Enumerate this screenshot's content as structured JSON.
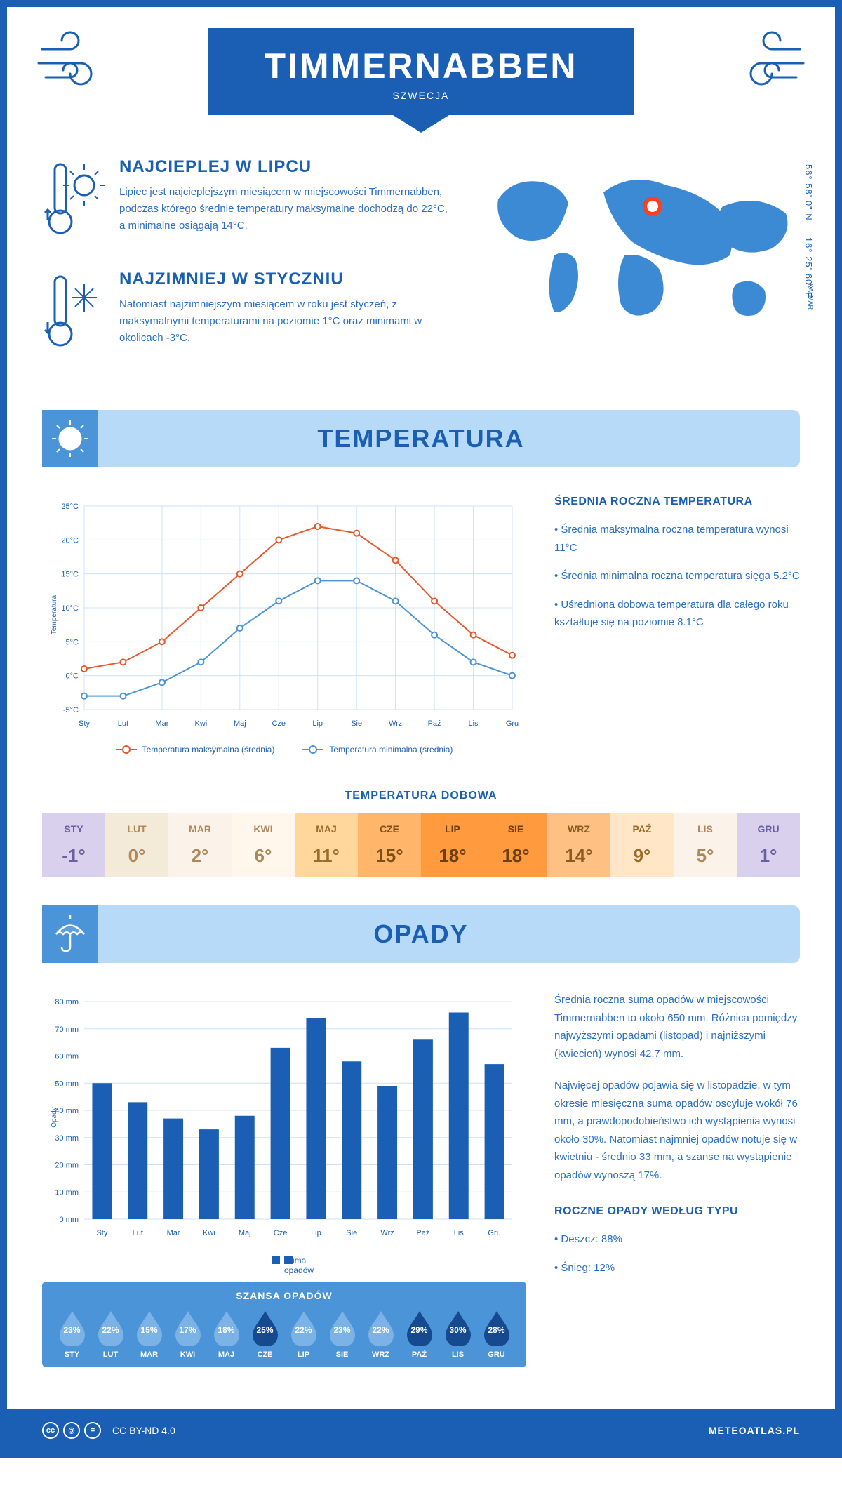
{
  "header": {
    "city": "TIMMERNABBEN",
    "country": "SZWECJA"
  },
  "info": {
    "warm": {
      "title": "NAJCIEPLEJ W LIPCU",
      "text": "Lipiec jest najcieplejszym miesiącem w miejscowości Timmernabben, podczas którego średnie temperatury maksymalne dochodzą do 22°C, a minimalne osiągają 14°C."
    },
    "cold": {
      "title": "NAJZIMNIEJ W STYCZNIU",
      "text": "Natomiast najzimniejszym miesiącem w roku jest styczeń, z maksymalnymi temperaturami na poziomie 1°C oraz minimami w okolicach -3°C."
    },
    "coords": "56° 58' 0\" N — 16° 25' 60\" E",
    "region": "KALMAR"
  },
  "temp_section": {
    "banner": "TEMPERATURA",
    "chart": {
      "type": "line",
      "months": [
        "Sty",
        "Lut",
        "Mar",
        "Kwi",
        "Maj",
        "Cze",
        "Lip",
        "Sie",
        "Wrz",
        "Paź",
        "Lis",
        "Gru"
      ],
      "max_series": {
        "label": "Temperatura maksymalna (średnia)",
        "color": "#e8562a",
        "values": [
          1,
          2,
          5,
          10,
          15,
          20,
          22,
          21,
          17,
          11,
          6,
          3
        ]
      },
      "min_series": {
        "label": "Temperatura minimalna (średnia)",
        "color": "#4b94d8",
        "values": [
          -3,
          -3,
          -1,
          2,
          7,
          11,
          14,
          14,
          11,
          6,
          2,
          0
        ]
      },
      "ylim": [
        -5,
        25
      ],
      "ytick_step": 5,
      "ylabel": "Temperatura",
      "grid_color": "#cce3f7",
      "background": "#ffffff"
    },
    "side": {
      "title": "ŚREDNIA ROCZNA TEMPERATURA",
      "items": [
        "Średnia maksymalna roczna temperatura wynosi 11°C",
        "Średnia minimalna roczna temperatura sięga 5.2°C",
        "Uśredniona dobowa temperatura dla całego roku kształtuje się na poziomie 8.1°C"
      ]
    },
    "daily": {
      "title": "TEMPERATURA DOBOWA",
      "months": [
        "STY",
        "LUT",
        "MAR",
        "KWI",
        "MAJ",
        "CZE",
        "LIP",
        "SIE",
        "WRZ",
        "PAŹ",
        "LIS",
        "GRU"
      ],
      "values": [
        "-1°",
        "0°",
        "2°",
        "6°",
        "11°",
        "15°",
        "18°",
        "18°",
        "14°",
        "9°",
        "5°",
        "1°"
      ],
      "bg_colors": [
        "#d8d0ec",
        "#f4ead8",
        "#fbf3e9",
        "#fff6ec",
        "#ffd79d",
        "#ffb66b",
        "#ff9a3f",
        "#ff9a3f",
        "#ffc183",
        "#ffe6c7",
        "#fbf3e9",
        "#d8d0ec"
      ],
      "text_colors": [
        "#6a5fa0",
        "#b0875a",
        "#b0875a",
        "#b0875a",
        "#9a6b2a",
        "#7a4f18",
        "#6b3f0f",
        "#6b3f0f",
        "#8a5a22",
        "#9a6b2a",
        "#b0875a",
        "#6a5fa0"
      ]
    }
  },
  "precip_section": {
    "banner": "OPADY",
    "chart": {
      "type": "bar",
      "months": [
        "Sty",
        "Lut",
        "Mar",
        "Kwi",
        "Maj",
        "Cze",
        "Lip",
        "Sie",
        "Wrz",
        "Paź",
        "Lis",
        "Gru"
      ],
      "values": [
        50,
        43,
        37,
        33,
        38,
        63,
        74,
        58,
        49,
        66,
        76,
        57
      ],
      "ylim": [
        0,
        80
      ],
      "ytick_step": 10,
      "ylabel": "Opady",
      "bar_color": "#1a5fb4",
      "grid_color": "#cce3f7",
      "legend": "Suma opadów"
    },
    "side": {
      "para1": "Średnia roczna suma opadów w miejscowości Timmernabben to około 650 mm. Różnica pomiędzy najwyższymi opadami (listopad) i najniższymi (kwiecień) wynosi 42.7 mm.",
      "para2": "Najwięcej opadów pojawia się w listopadzie, w tym okresie miesięczna suma opadów oscyluje wokół 76 mm, a prawdopodobieństwo ich wystąpienia wynosi około 30%. Natomiast najmniej opadów notuje się w kwietniu - średnio 33 mm, a szanse na wystąpienie opadów wynoszą 17%."
    },
    "chance": {
      "title": "SZANSA OPADÓW",
      "months": [
        "STY",
        "LUT",
        "MAR",
        "KWI",
        "MAJ",
        "CZE",
        "LIP",
        "SIE",
        "WRZ",
        "PAŹ",
        "LIS",
        "GRU"
      ],
      "values": [
        "23%",
        "22%",
        "15%",
        "17%",
        "18%",
        "25%",
        "22%",
        "23%",
        "22%",
        "29%",
        "30%",
        "28%"
      ],
      "drop_light": "#7bb3e6",
      "drop_dark": "#164a8f",
      "dark_months": [
        5,
        9,
        10,
        11
      ]
    },
    "byType": {
      "title": "ROCZNE OPADY WEDŁUG TYPU",
      "items": [
        "Deszcz: 88%",
        "Śnieg: 12%"
      ]
    }
  },
  "footer": {
    "license": "CC BY-ND 4.0",
    "site": "METEOATLAS.PL"
  }
}
